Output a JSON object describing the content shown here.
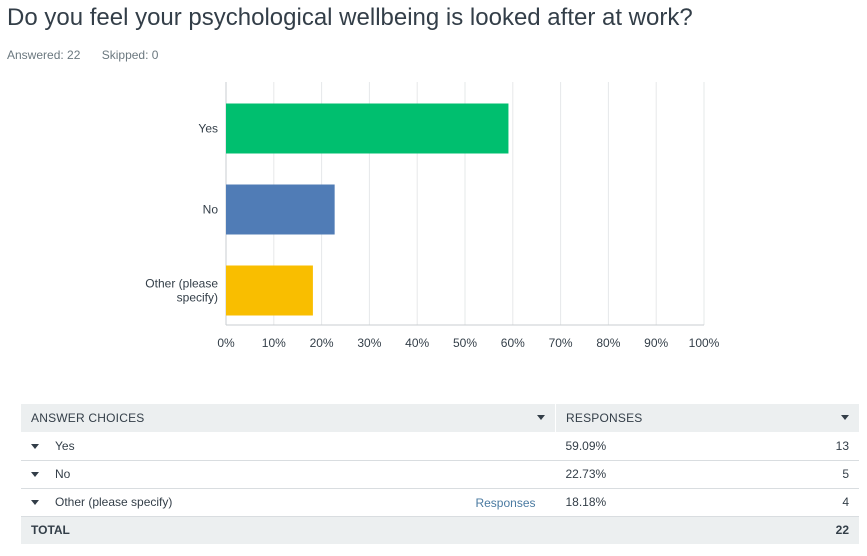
{
  "question": {
    "title": "Do you feel your psychological wellbeing is looked after at work?",
    "answered": "Answered: 22",
    "skipped": "Skipped: 0"
  },
  "chart_data": {
    "type": "bar",
    "orientation": "horizontal",
    "categories": [
      "Yes",
      "No",
      "Other (please specify)"
    ],
    "category_label_lines": [
      [
        "Yes"
      ],
      [
        "No"
      ],
      [
        "Other (please",
        "specify)"
      ]
    ],
    "values": [
      59.09,
      22.73,
      18.18
    ],
    "colors": [
      "#00bf6f",
      "#507cb6",
      "#f9be00"
    ],
    "xlim": [
      0,
      100
    ],
    "ticks": [
      0,
      10,
      20,
      30,
      40,
      50,
      60,
      70,
      80,
      90,
      100
    ],
    "tick_labels": [
      "0%",
      "10%",
      "20%",
      "30%",
      "40%",
      "50%",
      "60%",
      "70%",
      "80%",
      "90%",
      "100%"
    ],
    "grid": true,
    "title": "",
    "xlabel": "",
    "ylabel": ""
  },
  "table": {
    "header_answer": "ANSWER CHOICES",
    "header_responses": "RESPONSES",
    "rows": [
      {
        "choice": "Yes",
        "percent": "59.09%",
        "count": "13"
      },
      {
        "choice": "No",
        "percent": "22.73%",
        "count": "5"
      },
      {
        "choice": "Other (please specify)",
        "percent": "18.18%",
        "count": "4",
        "link": "Responses"
      }
    ],
    "total_label": "TOTAL",
    "total_count": "22"
  }
}
